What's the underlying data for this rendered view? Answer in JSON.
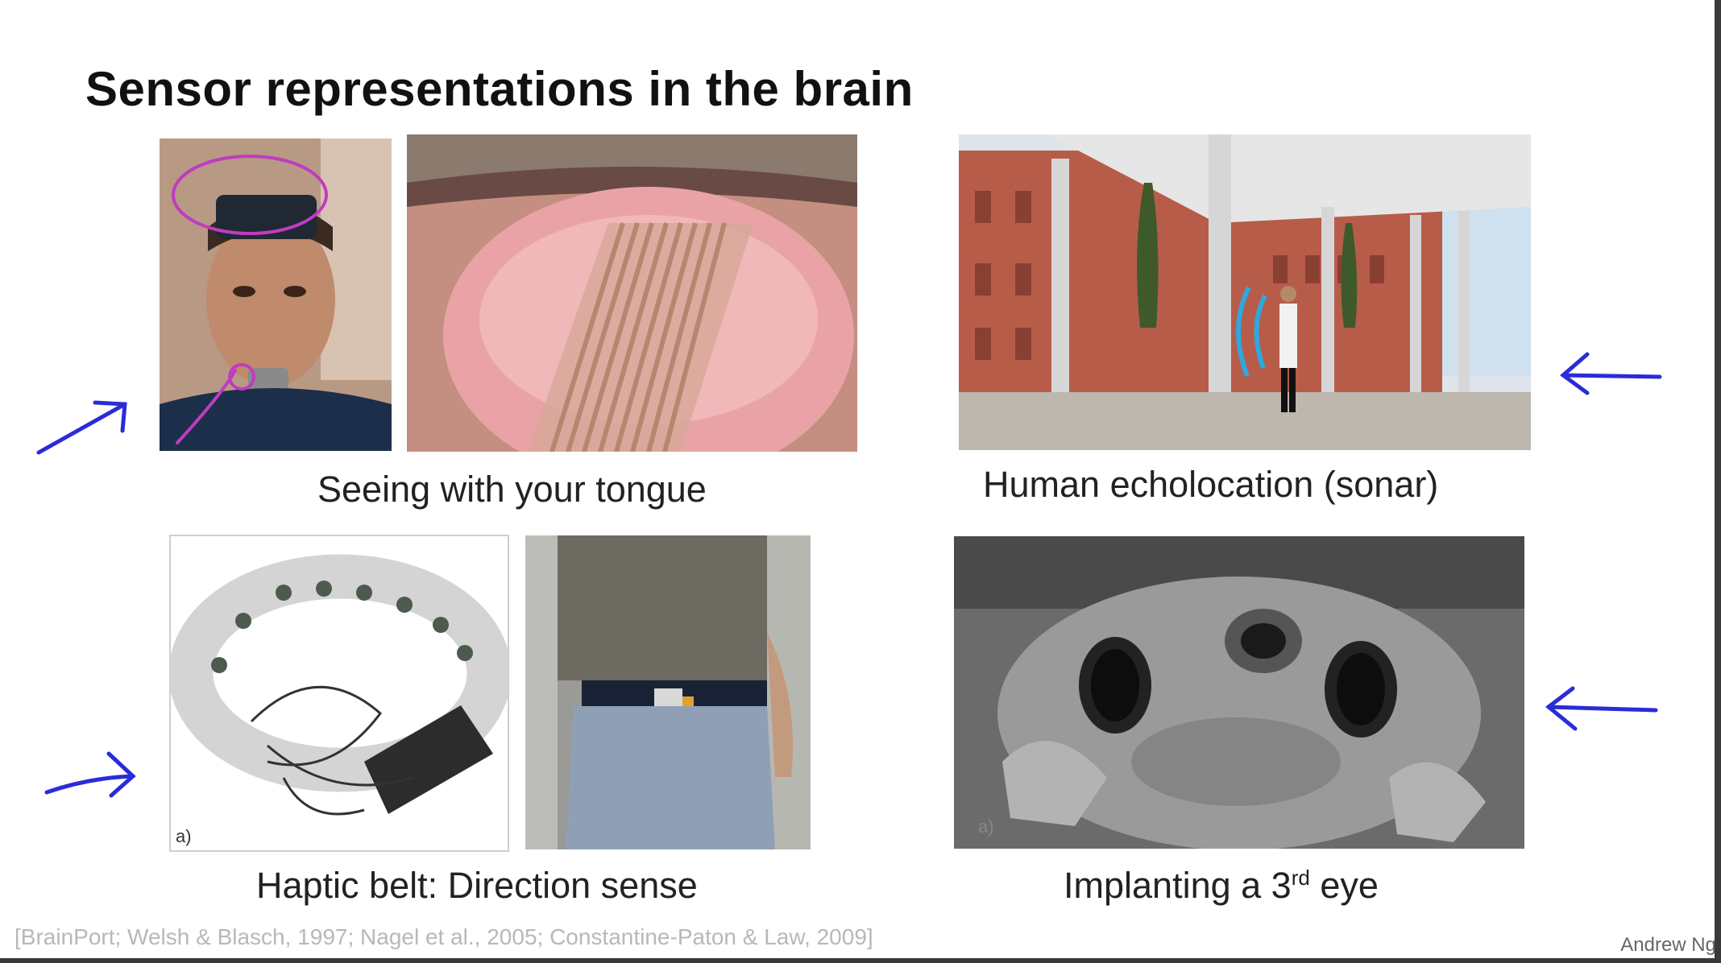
{
  "slide": {
    "title": "Sensor representations in the brain",
    "captions": {
      "tongue": "Seeing with your tongue",
      "echolocation": "Human echolocation (sonar)",
      "haptic": "Haptic belt: Direction sense",
      "third_eye_prefix": "Implanting a 3",
      "third_eye_sup": "rd",
      "third_eye_suffix": " eye"
    },
    "citation": "[BrainPort; Welsh & Blasch, 1997; Nagel et al., 2005; Constantine-Paton & Law, 2009]",
    "author": "Andrew Ng",
    "panel_labels": {
      "haptic_drawing": "a)",
      "frog": "a)"
    }
  },
  "annotation_colors": {
    "arrow": "#2b2bd9",
    "circle": "#c03cc0"
  },
  "icons": [
    "arrow-annotation-icon",
    "circle-annotation-icon",
    "sound-wave-icon"
  ]
}
